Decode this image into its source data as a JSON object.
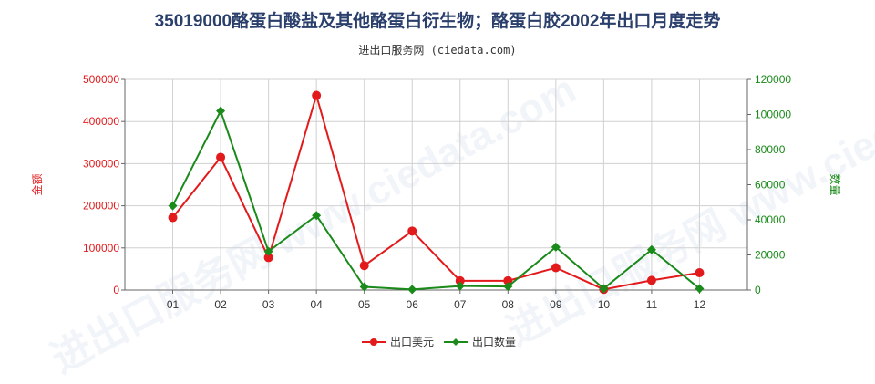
{
  "header": {
    "title": "35019000酪蛋白酸盐及其他酪蛋白衍生物；酪蛋白胶2002年出口月度走势",
    "subtitle": "进出口服务网 (ciedata.com)"
  },
  "watermark": "进出口服务网 www.ciedata.com",
  "colors": {
    "left": "#e31a1c",
    "right": "#1a8a1a",
    "grid": "#d0d0d0",
    "axis": "#666666"
  },
  "chart_data": {
    "type": "line",
    "categories": [
      "01",
      "02",
      "03",
      "04",
      "05",
      "06",
      "07",
      "08",
      "09",
      "10",
      "11",
      "12"
    ],
    "y_left": {
      "label": "金额",
      "ylim": [
        0,
        500000
      ],
      "ticks": [
        0,
        100000,
        200000,
        300000,
        400000,
        500000
      ]
    },
    "y_right": {
      "label": "数量",
      "ylim": [
        0,
        120000
      ],
      "ticks": [
        0,
        20000,
        40000,
        60000,
        80000,
        100000,
        120000
      ]
    },
    "grid": true,
    "legend_position": "bottom-center",
    "series": [
      {
        "name": "出口美元",
        "axis": "left",
        "color": "#e31a1c",
        "values": [
          172000,
          315000,
          77000,
          462000,
          58000,
          140000,
          22000,
          22000,
          53000,
          1500,
          23000,
          41000
        ]
      },
      {
        "name": "出口数量",
        "axis": "right",
        "color": "#1a8a1a",
        "values": [
          48000,
          102000,
          22000,
          42500,
          1800,
          300,
          2300,
          2000,
          24500,
          800,
          23000,
          800
        ]
      }
    ]
  }
}
